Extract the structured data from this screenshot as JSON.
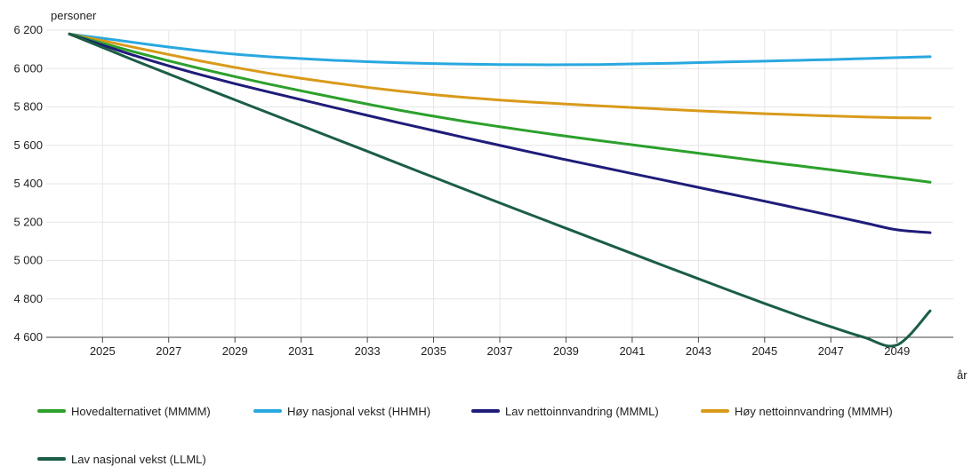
{
  "chart_data": {
    "type": "line",
    "ylabel": "personer",
    "xlabel": "år",
    "ylim": [
      4600,
      6200
    ],
    "yticks": [
      4600,
      4800,
      5000,
      5200,
      5400,
      5600,
      5800,
      6000,
      6200
    ],
    "ytick_labels": [
      "4 600",
      "4 800",
      "5 000",
      "5 200",
      "5 400",
      "5 600",
      "5 800",
      "6 000",
      "6 200"
    ],
    "xlim": [
      2023.3,
      2050.7
    ],
    "xticks": [
      2025,
      2027,
      2029,
      2031,
      2033,
      2035,
      2037,
      2039,
      2041,
      2043,
      2045,
      2047,
      2049
    ],
    "grid": true,
    "legend_position": "bottom",
    "x": [
      2024,
      2025,
      2026,
      2027,
      2028,
      2029,
      2030,
      2031,
      2032,
      2033,
      2034,
      2035,
      2036,
      2037,
      2038,
      2039,
      2040,
      2041,
      2042,
      2043,
      2044,
      2045,
      2046,
      2047,
      2048,
      2049,
      2050
    ],
    "series": [
      {
        "name": "Hovedalternativet (MMMM)",
        "color": "#2ca02c",
        "values": [
          6180,
          6132,
          6085,
          6040,
          5998,
          5958,
          5920,
          5884,
          5849,
          5815,
          5782,
          5752,
          5723,
          5697,
          5672,
          5648,
          5625,
          5603,
          5581,
          5559,
          5537,
          5515,
          5494,
          5473,
          5451,
          5430,
          5408
        ]
      },
      {
        "name": "Høy nasjonal vekst (HHMH)",
        "color": "#29a8e0",
        "values": [
          6180,
          6158,
          6135,
          6112,
          6092,
          6075,
          6062,
          6052,
          6043,
          6036,
          6030,
          6026,
          6023,
          6021,
          6020,
          6020,
          6021,
          6024,
          6027,
          6031,
          6035,
          6039,
          6043,
          6047,
          6052,
          6057,
          6062
        ]
      },
      {
        "name": "Lav nettoinnvandring (MMML)",
        "color": "#1f1c7a",
        "values": [
          6180,
          6122,
          6066,
          6014,
          5966,
          5921,
          5879,
          5838,
          5797,
          5756,
          5716,
          5677,
          5638,
          5600,
          5562,
          5525,
          5489,
          5453,
          5417,
          5381,
          5345,
          5309,
          5272,
          5235,
          5197,
          5160,
          5145
        ]
      },
      {
        "name": "Høy nettoinnvandring (MMMH)",
        "color": "#d99a1b",
        "values": [
          6180,
          6145,
          6109,
          6073,
          6038,
          6006,
          5976,
          5949,
          5925,
          5902,
          5882,
          5864,
          5849,
          5836,
          5825,
          5815,
          5806,
          5797,
          5788,
          5780,
          5772,
          5765,
          5759,
          5753,
          5748,
          5744,
          5742
        ]
      },
      {
        "name": "Lav nasjonal vekst (LLML)",
        "color": "#1b5e45",
        "values": [
          6180,
          6110,
          6040,
          5972,
          5904,
          5837,
          5770,
          5703,
          5636,
          5569,
          5501,
          5434,
          5367,
          5300,
          5234,
          5168,
          5102,
          5036,
          4970,
          4905,
          4840,
          4776,
          4714,
          4655,
          4600,
          4560,
          4738
        ]
      }
    ]
  }
}
